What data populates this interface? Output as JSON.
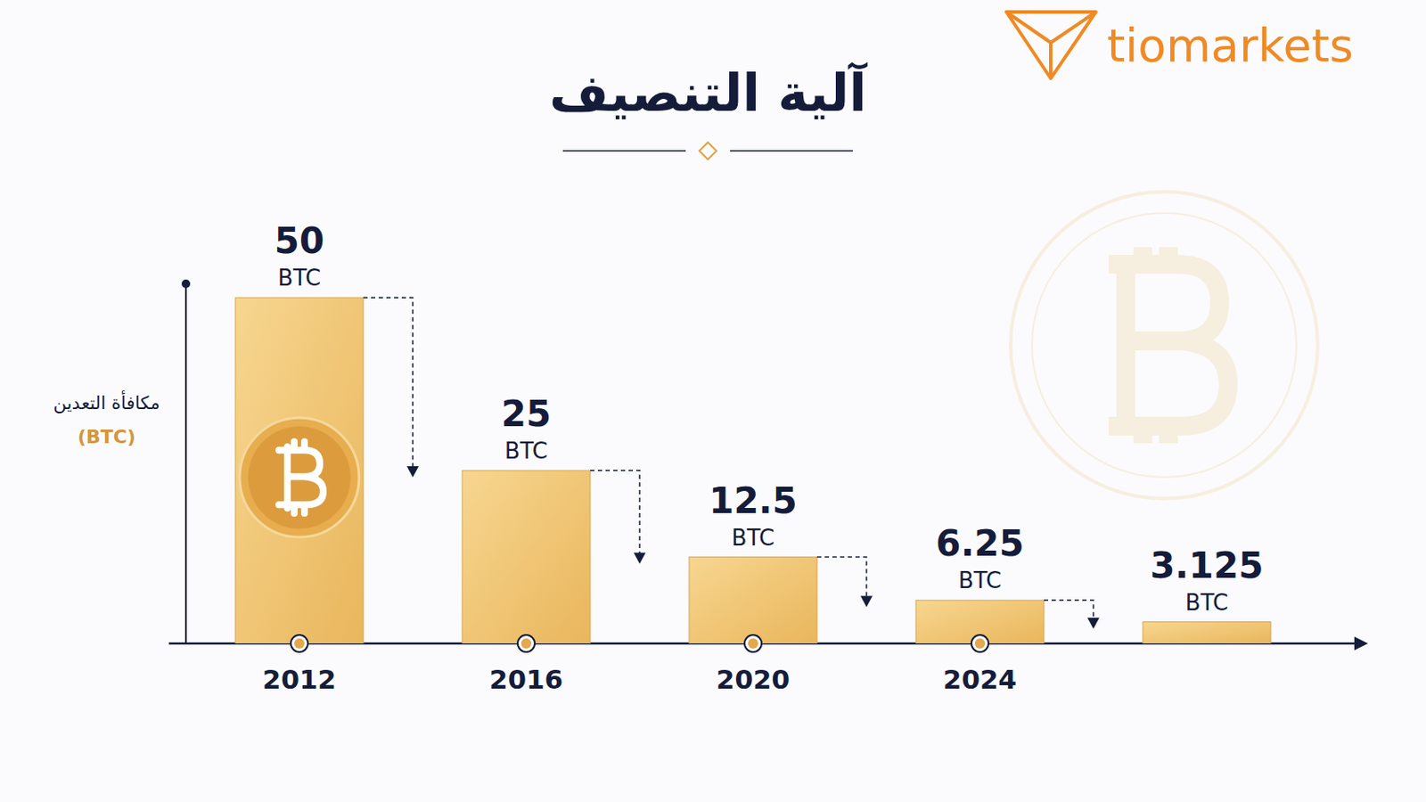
{
  "chart_data": {
    "type": "bar",
    "title": "آلية التنصيف",
    "brand": "tiomarkets",
    "ylabel": [
      "مكافأة التعدين",
      "(BTC)"
    ],
    "categories": [
      "2012",
      "2016",
      "2020",
      "2024",
      null
    ],
    "values": [
      50,
      25,
      12.5,
      6.25,
      3.125
    ],
    "value_labels": [
      "50 BTC",
      "25 BTC",
      "12.5 BTC",
      "6.25 BTC",
      "3.125 BTC"
    ],
    "color": "#e9b65c",
    "ylim": [
      0,
      52
    ],
    "data_labels": true,
    "tick_labels": "x",
    "grid": false
  }
}
